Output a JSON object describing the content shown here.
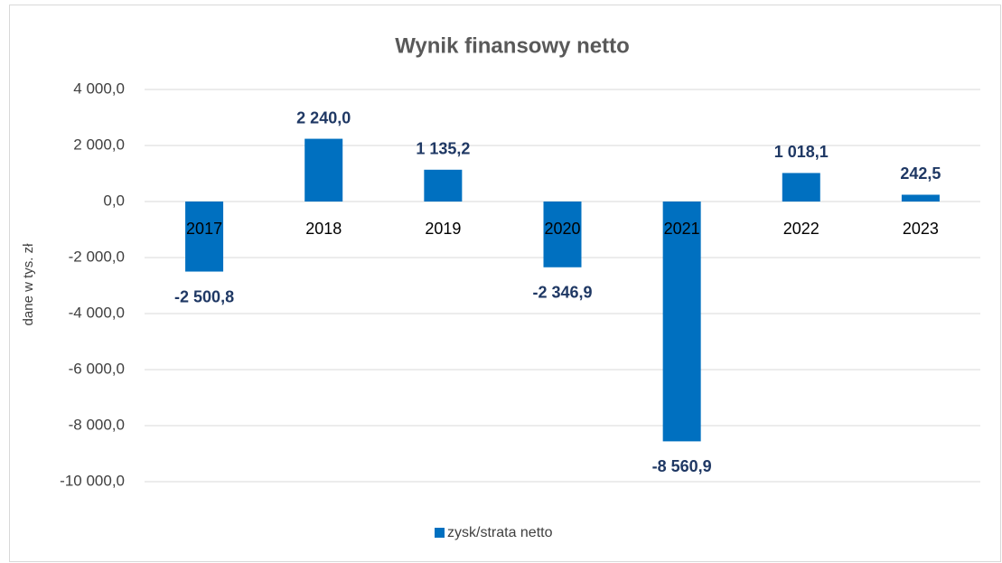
{
  "chart_data": {
    "type": "bar",
    "title": "Wynik finansowy netto",
    "y_label": "dane w tys. zł",
    "categories": [
      "2017",
      "2018",
      "2019",
      "2020",
      "2021",
      "2022",
      "2023"
    ],
    "series": [
      {
        "name": "zysk/strata netto",
        "color": "#0070c0",
        "values": [
          -2500.8,
          2240.0,
          1135.2,
          -2346.9,
          -8560.9,
          1018.1,
          242.5
        ],
        "value_labels": [
          "-2 500,8",
          "2 240,0",
          "1 135,2",
          "-2 346,9",
          "-8 560,9",
          "1 018,1",
          "242,5"
        ]
      }
    ],
    "ylim": [
      -10000,
      4000
    ],
    "yticks": [
      {
        "value": -10000,
        "label": "-10 000,0"
      },
      {
        "value": -8000,
        "label": "-8 000,0"
      },
      {
        "value": -6000,
        "label": "-6 000,0"
      },
      {
        "value": -4000,
        "label": "-4 000,0"
      },
      {
        "value": -2000,
        "label": "-2 000,0"
      },
      {
        "value": 0,
        "label": "0,0"
      },
      {
        "value": 2000,
        "label": "2 000,0"
      },
      {
        "value": 4000,
        "label": "4 000,0"
      }
    ],
    "grid": true,
    "legend": "bottom"
  }
}
